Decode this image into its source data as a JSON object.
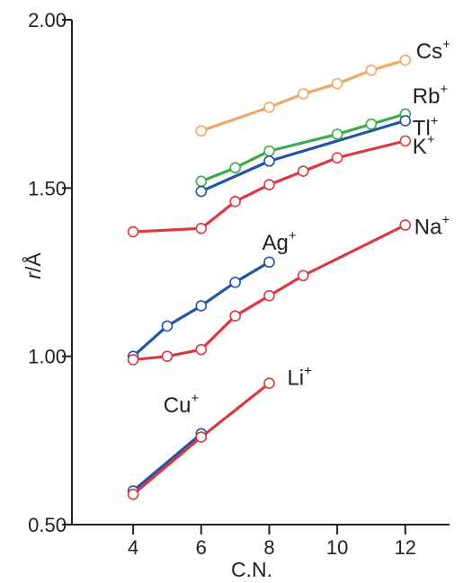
{
  "chart_data": {
    "type": "line",
    "xlabel": "C.N.",
    "ylabel_main": "r",
    "ylabel_unit": "/Å",
    "xlim": [
      2.2,
      13.3
    ],
    "ylim": [
      0.5,
      2.0
    ],
    "x_ticks": [
      "4",
      "6",
      "8",
      "10",
      "12"
    ],
    "y_ticks": [
      "0.50",
      "1.00",
      "1.50",
      "2.00"
    ],
    "grid": false,
    "series": [
      {
        "name": "Cs",
        "charge": "+",
        "color": "#f0a868",
        "x": [
          6,
          8,
          9,
          10,
          11,
          12
        ],
        "y": [
          1.67,
          1.74,
          1.78,
          1.81,
          1.85,
          1.88
        ]
      },
      {
        "name": "Rb",
        "charge": "+",
        "color": "#3cab4b",
        "x": [
          6,
          7,
          8,
          10,
          11,
          12
        ],
        "y": [
          1.52,
          1.56,
          1.61,
          1.66,
          1.69,
          1.72
        ]
      },
      {
        "name": "Tl",
        "charge": "+",
        "color": "#2255a4",
        "x": [
          6,
          8,
          12
        ],
        "y": [
          1.49,
          1.58,
          1.7
        ]
      },
      {
        "name": "K",
        "charge": "+",
        "color": "#d83a3f",
        "x": [
          4,
          6,
          7,
          8,
          9,
          10,
          12
        ],
        "y": [
          1.37,
          1.38,
          1.46,
          1.51,
          1.55,
          1.59,
          1.64
        ]
      },
      {
        "name": "Ag",
        "charge": "+",
        "color": "#2255a4",
        "x": [
          4,
          5,
          6,
          7,
          8
        ],
        "y": [
          1.0,
          1.09,
          1.15,
          1.22,
          1.28
        ]
      },
      {
        "name": "Na",
        "charge": "+",
        "color": "#d83a3f",
        "x": [
          4,
          5,
          6,
          7,
          8,
          9,
          12
        ],
        "y": [
          0.99,
          1.0,
          1.02,
          1.12,
          1.18,
          1.24,
          1.39
        ]
      },
      {
        "name": "Cu",
        "charge": "+",
        "color": "#2255a4",
        "x": [
          4,
          6
        ],
        "y": [
          0.6,
          0.77
        ]
      },
      {
        "name": "Li",
        "charge": "+",
        "color": "#d83a3f",
        "x": [
          4,
          6,
          8
        ],
        "y": [
          0.59,
          0.76,
          0.92
        ]
      }
    ]
  }
}
